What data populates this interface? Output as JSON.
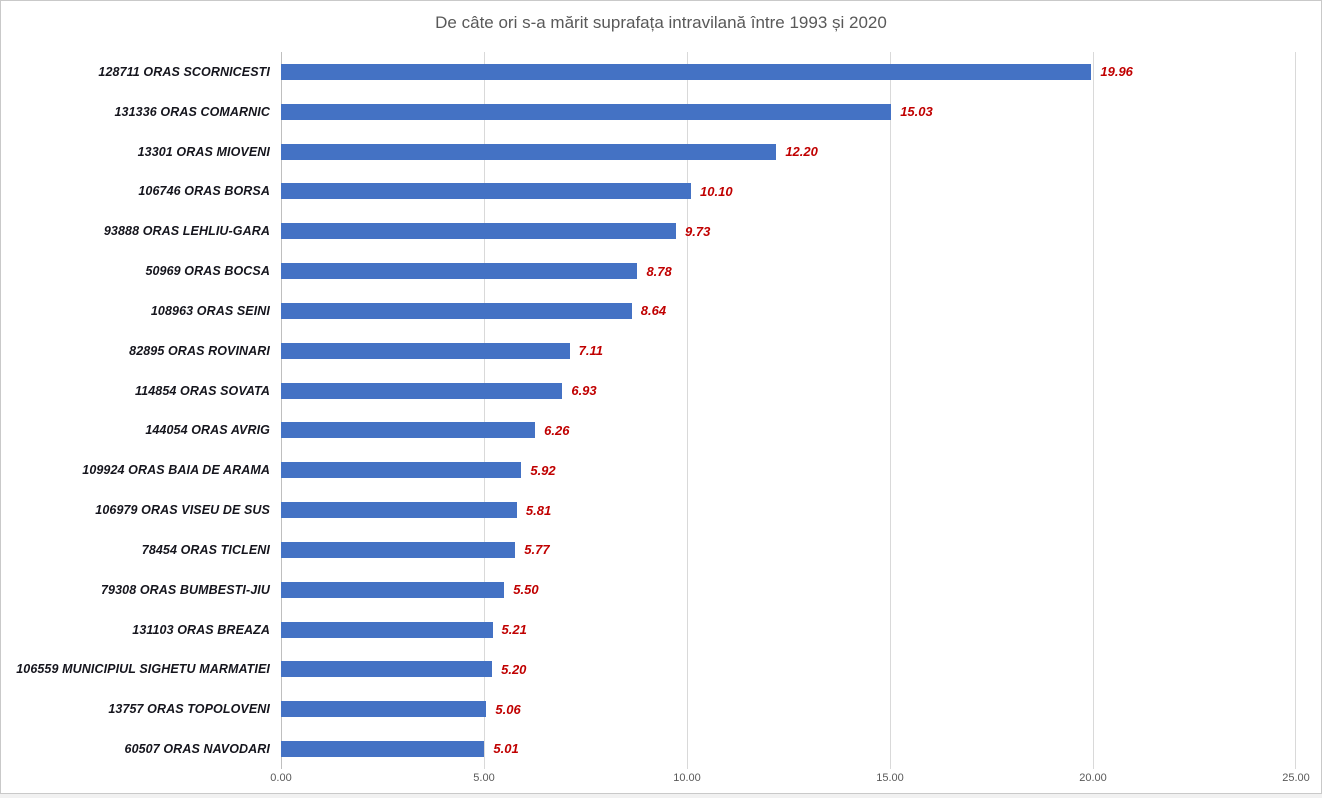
{
  "title": "De câte ori s-a mărit suprafața intravilană între 1993 și 2020",
  "colors": {
    "bar": "#4472C4",
    "value_label": "#C00000",
    "category_label": "#15151D",
    "gridline": "#D9D9D9",
    "axis_line": "#BFBFBF",
    "title_text": "#595959",
    "tick_text": "#595959"
  },
  "chart_data": {
    "type": "bar",
    "orientation": "horizontal",
    "title": "De câte ori s-a mărit suprafața intravilană între 1993 și 2020",
    "categories": [
      "128711 ORAS SCORNICESTI",
      "131336 ORAS COMARNIC",
      "13301 ORAS MIOVENI",
      "106746 ORAS BORSA",
      "93888 ORAS LEHLIU-GARA",
      "50969 ORAS BOCSA",
      "108963 ORAS SEINI",
      "82895 ORAS ROVINARI",
      "114854 ORAS SOVATA",
      "144054 ORAS AVRIG",
      "109924 ORAS BAIA DE ARAMA",
      "106979 ORAS VISEU DE SUS",
      "78454 ORAS TICLENI",
      "79308 ORAS BUMBESTI-JIU",
      "131103 ORAS BREAZA",
      "106559 MUNICIPIUL SIGHETU MARMATIEI",
      "13757 ORAS TOPOLOVENI",
      "60507 ORAS NAVODARI"
    ],
    "values": [
      19.96,
      15.03,
      12.2,
      10.1,
      9.73,
      8.78,
      8.64,
      7.11,
      6.93,
      6.26,
      5.92,
      5.81,
      5.77,
      5.5,
      5.21,
      5.2,
      5.06,
      5.01
    ],
    "xlim": [
      0,
      25
    ],
    "x_ticks": [
      0,
      5,
      10,
      15,
      20,
      25
    ],
    "tick_decimals": 2,
    "value_label_decimals": 2,
    "grid": "vertical",
    "legend": "none",
    "xlabel": "",
    "ylabel": ""
  }
}
